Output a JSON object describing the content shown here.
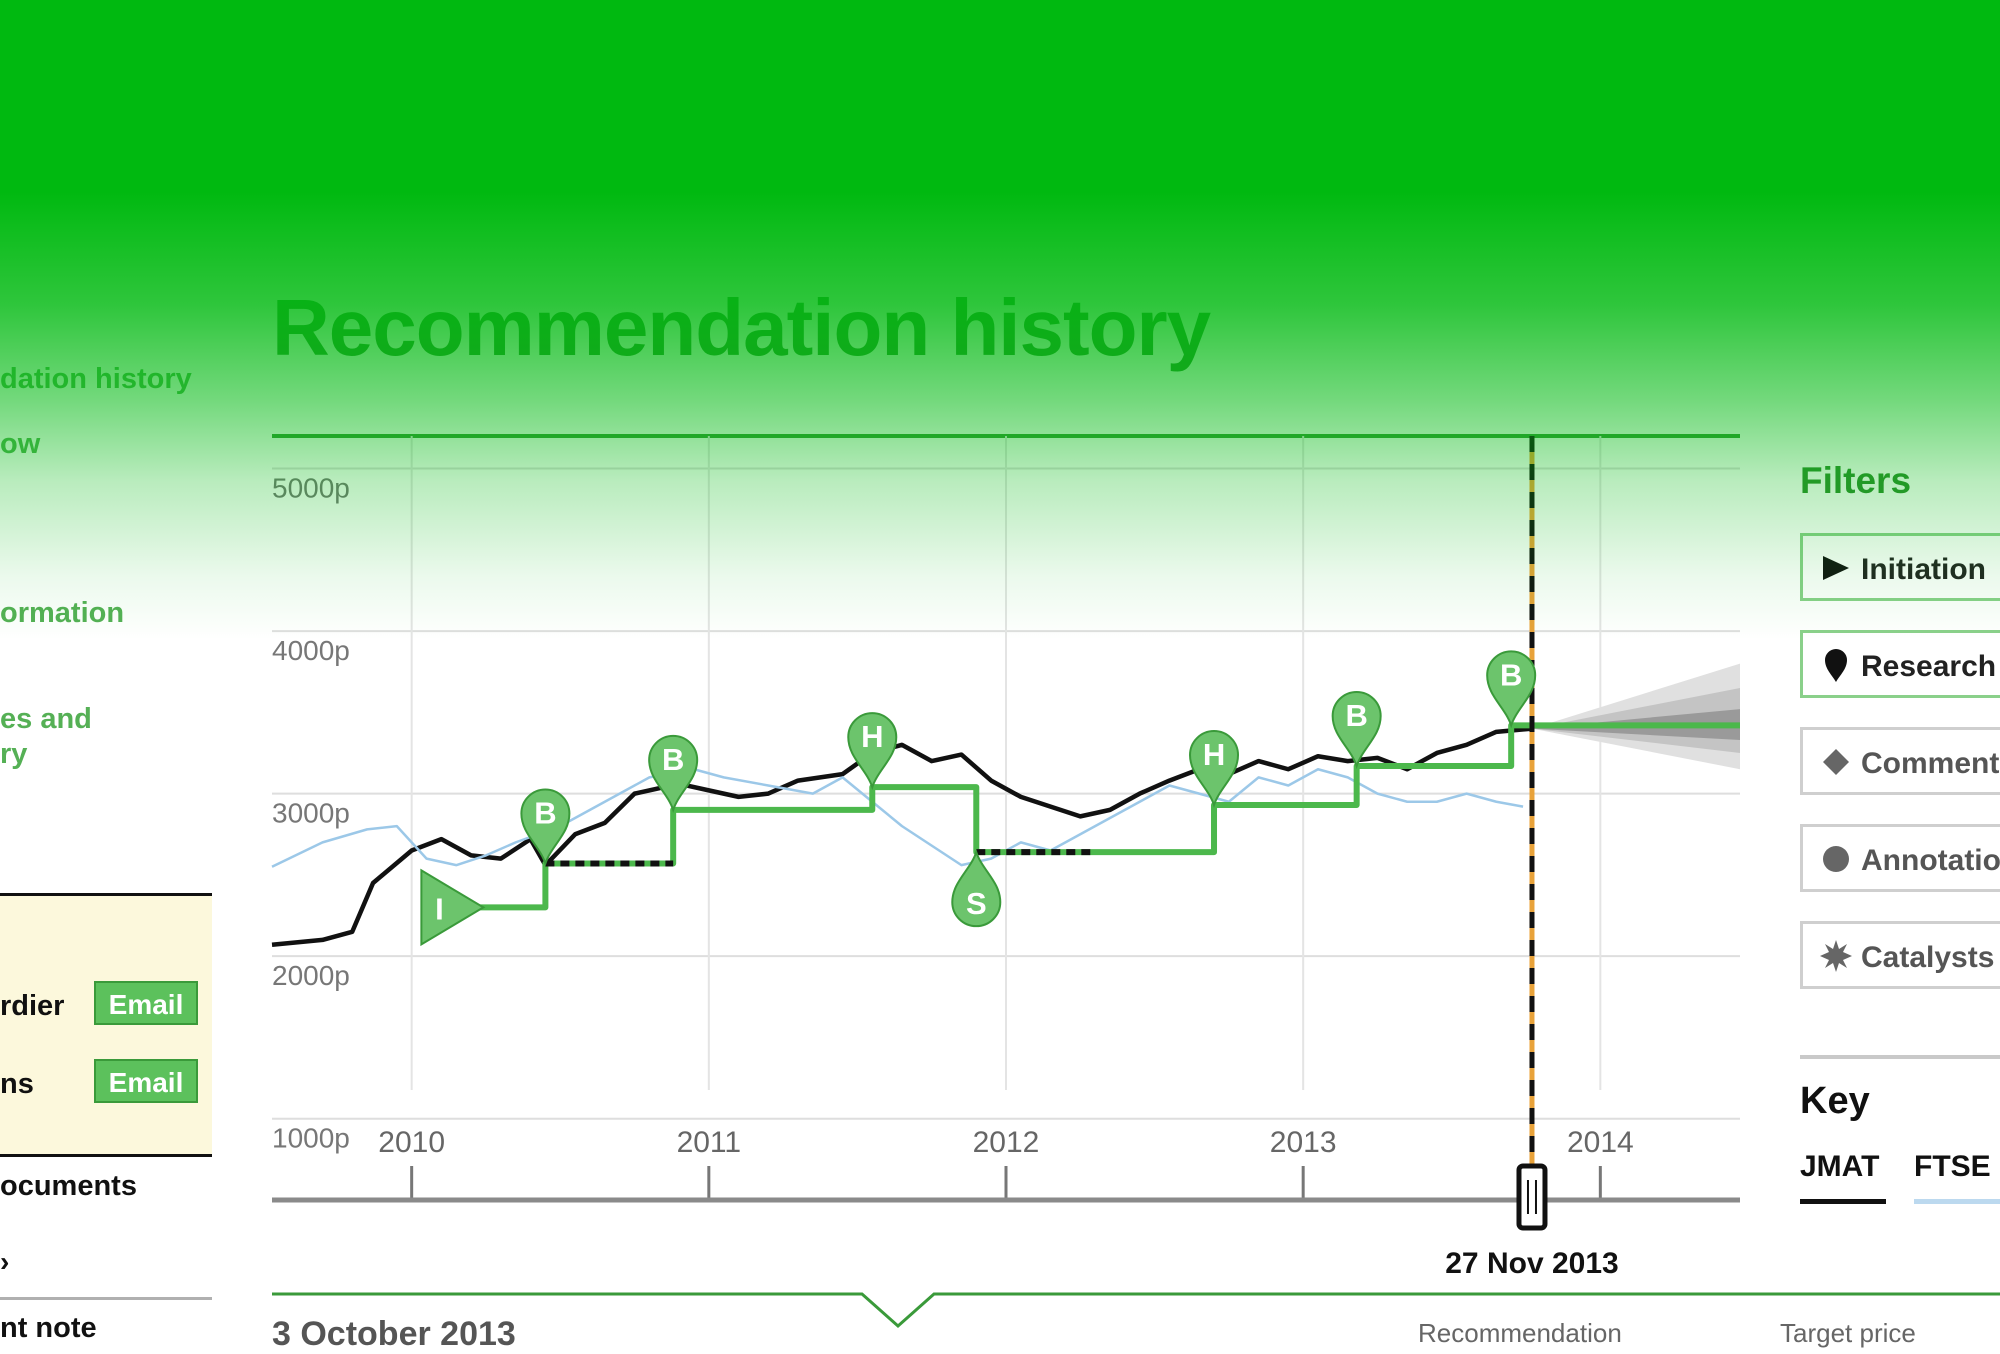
{
  "page": {
    "title": "Recommendation history"
  },
  "left_nav": {
    "items": [
      "dation history",
      "ow",
      "ormation",
      "es and",
      "ry"
    ]
  },
  "contacts": [
    {
      "name": "rdier",
      "action": "Email"
    },
    {
      "name": "ns",
      "action": "Email"
    }
  ],
  "documents": {
    "title": "ocuments",
    "arrow": "›",
    "bottom": "nt note"
  },
  "chart_data": {
    "type": "line",
    "title": "",
    "xlabel": "",
    "ylabel": "",
    "y_ticks": [
      "5000p",
      "4000p",
      "3000p",
      "2000p",
      "1000p"
    ],
    "x_ticks": [
      "2010",
      "2011",
      "2012",
      "2013",
      "2014"
    ],
    "ylim": [
      500,
      5200
    ],
    "xlim": [
      2009.53,
      2014.47
    ],
    "grid": true,
    "selected_date_label": "27 Nov 2013",
    "selected_date_value": 2013.77,
    "series": [
      {
        "name": "JMAT",
        "color": "#111111",
        "points": [
          [
            2009.53,
            2070
          ],
          [
            2009.7,
            2100
          ],
          [
            2009.8,
            2150
          ],
          [
            2009.87,
            2450
          ],
          [
            2010.0,
            2650
          ],
          [
            2010.1,
            2720
          ],
          [
            2010.2,
            2620
          ],
          [
            2010.3,
            2600
          ],
          [
            2010.4,
            2720
          ],
          [
            2010.45,
            2560
          ],
          [
            2010.55,
            2750
          ],
          [
            2010.65,
            2820
          ],
          [
            2010.75,
            3000
          ],
          [
            2010.9,
            3060
          ],
          [
            2011.0,
            3020
          ],
          [
            2011.1,
            2980
          ],
          [
            2011.2,
            3000
          ],
          [
            2011.3,
            3080
          ],
          [
            2011.45,
            3120
          ],
          [
            2011.55,
            3250
          ],
          [
            2011.65,
            3300
          ],
          [
            2011.75,
            3200
          ],
          [
            2011.85,
            3240
          ],
          [
            2011.95,
            3080
          ],
          [
            2012.05,
            2980
          ],
          [
            2012.15,
            2920
          ],
          [
            2012.25,
            2860
          ],
          [
            2012.35,
            2900
          ],
          [
            2012.45,
            3000
          ],
          [
            2012.55,
            3080
          ],
          [
            2012.65,
            3150
          ],
          [
            2012.75,
            3120
          ],
          [
            2012.85,
            3200
          ],
          [
            2012.95,
            3150
          ],
          [
            2013.05,
            3230
          ],
          [
            2013.15,
            3200
          ],
          [
            2013.25,
            3220
          ],
          [
            2013.35,
            3150
          ],
          [
            2013.45,
            3250
          ],
          [
            2013.55,
            3300
          ],
          [
            2013.65,
            3380
          ],
          [
            2013.77,
            3400
          ]
        ]
      },
      {
        "name": "FTSE",
        "color": "#9cc8e8",
        "points": [
          [
            2009.53,
            2550
          ],
          [
            2009.7,
            2700
          ],
          [
            2009.85,
            2780
          ],
          [
            2009.95,
            2800
          ],
          [
            2010.05,
            2600
          ],
          [
            2010.15,
            2560
          ],
          [
            2010.25,
            2620
          ],
          [
            2010.35,
            2700
          ],
          [
            2010.5,
            2800
          ],
          [
            2010.6,
            2900
          ],
          [
            2010.8,
            3100
          ],
          [
            2010.95,
            3150
          ],
          [
            2011.05,
            3100
          ],
          [
            2011.2,
            3050
          ],
          [
            2011.35,
            3000
          ],
          [
            2011.45,
            3100
          ],
          [
            2011.55,
            2950
          ],
          [
            2011.65,
            2800
          ],
          [
            2011.75,
            2680
          ],
          [
            2011.85,
            2560
          ],
          [
            2011.95,
            2600
          ],
          [
            2012.05,
            2700
          ],
          [
            2012.15,
            2650
          ],
          [
            2012.25,
            2750
          ],
          [
            2012.35,
            2850
          ],
          [
            2012.45,
            2950
          ],
          [
            2012.55,
            3050
          ],
          [
            2012.65,
            3000
          ],
          [
            2012.75,
            2950
          ],
          [
            2012.85,
            3100
          ],
          [
            2012.95,
            3050
          ],
          [
            2013.05,
            3150
          ],
          [
            2013.15,
            3100
          ],
          [
            2013.25,
            3000
          ],
          [
            2013.35,
            2950
          ],
          [
            2013.45,
            2950
          ],
          [
            2013.55,
            3000
          ],
          [
            2013.65,
            2950
          ],
          [
            2013.74,
            2920
          ]
        ]
      },
      {
        "name": "Target price",
        "color": "#4cb84c",
        "points": [
          [
            2010.1,
            2300
          ],
          [
            2010.45,
            2300
          ],
          [
            2010.45,
            2570
          ],
          [
            2010.88,
            2570
          ],
          [
            2010.88,
            2900
          ],
          [
            2011.55,
            2900
          ],
          [
            2011.55,
            3040
          ],
          [
            2011.9,
            3040
          ],
          [
            2011.9,
            2640
          ],
          [
            2012.7,
            2640
          ],
          [
            2012.7,
            2930
          ],
          [
            2013.18,
            2930
          ],
          [
            2013.18,
            3170
          ],
          [
            2013.7,
            3170
          ],
          [
            2013.7,
            3420
          ],
          [
            2014.47,
            3420
          ]
        ]
      }
    ],
    "dotted_segments": [
      {
        "from": [
          2010.45,
          2570
        ],
        "to": [
          2010.88,
          2570
        ]
      },
      {
        "from": [
          2011.9,
          2640
        ],
        "to": [
          2012.3,
          2640
        ]
      }
    ],
    "markers": [
      {
        "type": "I",
        "x": 2010.1,
        "y": 2300,
        "shape": "triangle"
      },
      {
        "type": "B",
        "x": 2010.45,
        "y": 2570,
        "shape": "pin"
      },
      {
        "type": "B",
        "x": 2010.88,
        "y": 2900,
        "shape": "pin"
      },
      {
        "type": "H",
        "x": 2011.55,
        "y": 3040,
        "shape": "pin"
      },
      {
        "type": "S",
        "x": 2011.9,
        "y": 2640,
        "shape": "drop"
      },
      {
        "type": "H",
        "x": 2012.7,
        "y": 2930,
        "shape": "pin"
      },
      {
        "type": "B",
        "x": 2013.18,
        "y": 3170,
        "shape": "pin"
      },
      {
        "type": "B",
        "x": 2013.7,
        "y": 3420,
        "shape": "pin"
      }
    ],
    "forecast": {
      "start": [
        2013.77,
        3400
      ],
      "end_x": 2014.47,
      "bands": [
        [
          3150,
          3800
        ],
        [
          3250,
          3650
        ],
        [
          3330,
          3520
        ]
      ]
    }
  },
  "filters": {
    "title": "Filters",
    "items": [
      {
        "label": "Initiation",
        "icon": "play-triangle-icon",
        "active": true
      },
      {
        "label": "Research",
        "icon": "map-pin-icon",
        "active": true
      },
      {
        "label": "Comment",
        "icon": "diamond-icon",
        "active": false
      },
      {
        "label": "Annotatio",
        "icon": "circle-icon",
        "active": false
      },
      {
        "label": "Catalysts",
        "icon": "starburst-icon",
        "active": false
      }
    ]
  },
  "key": {
    "title": "Key",
    "items": [
      {
        "label": "JMAT",
        "color": "#111111"
      },
      {
        "label": "FTSE :",
        "color": "#bcd9ef"
      }
    ]
  },
  "detail": {
    "date": "3 October 2013",
    "col_recommendation": "Recommendation",
    "col_target": "Target price"
  },
  "colors": {
    "accent": "#00b910",
    "brand_green": "#4cb84c",
    "timeline": "#e8a23a"
  }
}
